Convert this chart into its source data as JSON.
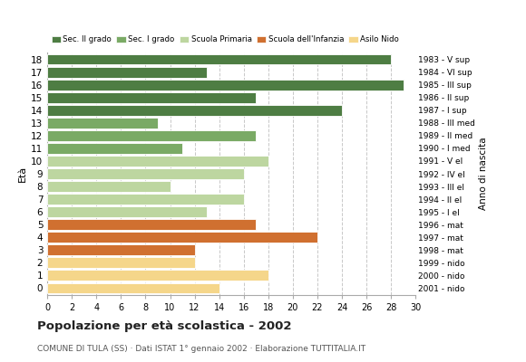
{
  "ages": [
    18,
    17,
    16,
    15,
    14,
    13,
    12,
    11,
    10,
    9,
    8,
    7,
    6,
    5,
    4,
    3,
    2,
    1,
    0
  ],
  "values": [
    28,
    13,
    29,
    17,
    24,
    9,
    17,
    11,
    18,
    16,
    10,
    16,
    13,
    17,
    22,
    12,
    12,
    18,
    14
  ],
  "anno_nascita": [
    "1983 - V sup",
    "1984 - VI sup",
    "1985 - III sup",
    "1986 - II sup",
    "1987 - I sup",
    "1988 - III med",
    "1989 - II med",
    "1990 - I med",
    "1991 - V el",
    "1992 - IV el",
    "1993 - III el",
    "1994 - II el",
    "1995 - I el",
    "1996 - mat",
    "1997 - mat",
    "1998 - mat",
    "1999 - nido",
    "2000 - nido",
    "2001 - nido"
  ],
  "colors": [
    "#4e7d43",
    "#4e7d43",
    "#4e7d43",
    "#4e7d43",
    "#4e7d43",
    "#7aaa65",
    "#7aaa65",
    "#7aaa65",
    "#bdd6a0",
    "#bdd6a0",
    "#bdd6a0",
    "#bdd6a0",
    "#bdd6a0",
    "#d07030",
    "#d07030",
    "#d07030",
    "#f5d68a",
    "#f5d68a",
    "#f5d68a"
  ],
  "legend_labels": [
    "Sec. II grado",
    "Sec. I grado",
    "Scuola Primaria",
    "Scuola dell'Infanzia",
    "Asilo Nido"
  ],
  "legend_colors": [
    "#4e7d43",
    "#7aaa65",
    "#bdd6a0",
    "#d07030",
    "#f5d68a"
  ],
  "title": "Popolazione per età scolastica - 2002",
  "subtitle": "COMUNE DI TULA (SS) · Dati ISTAT 1° gennaio 2002 · Elaborazione TUTTITALIA.IT",
  "xlabel_eta": "Età",
  "xlabel_anno": "Anno di nascita",
  "xlim": [
    0,
    30
  ],
  "xticks": [
    0,
    2,
    4,
    6,
    8,
    10,
    12,
    14,
    16,
    18,
    20,
    22,
    24,
    26,
    28,
    30
  ],
  "bg_color": "#ffffff",
  "bar_height": 0.82,
  "grid_color": "#c8c8c8"
}
